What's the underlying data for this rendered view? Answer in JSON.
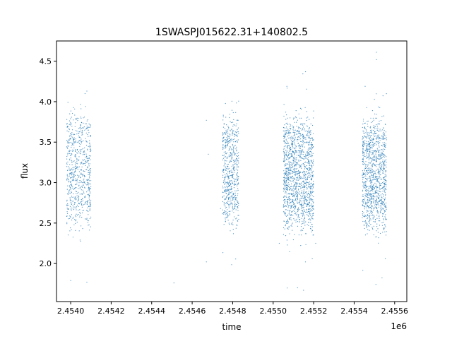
{
  "chart_data": {
    "type": "scatter",
    "title": "1SWASPJ015622.31+140802.5",
    "xlabel": "time",
    "ylabel": "flux",
    "x_offset_label": "1e6",
    "xlim": [
      2.45393,
      2.45566
    ],
    "ylim": [
      1.53,
      4.75
    ],
    "x_ticks": [
      2.454,
      2.4542,
      2.4544,
      2.4546,
      2.4548,
      2.455,
      2.4552,
      2.4554,
      2.4556
    ],
    "x_tick_labels": [
      "2.4540",
      "2.4542",
      "2.4544",
      "2.4546",
      "2.4548",
      "2.4550",
      "2.4552",
      "2.4554",
      "2.4556"
    ],
    "y_ticks": [
      2.0,
      2.5,
      3.0,
      3.5,
      4.0,
      4.5
    ],
    "y_tick_labels": [
      "2.0",
      "2.5",
      "3.0",
      "3.5",
      "4.0",
      "4.5"
    ],
    "grid": false,
    "legend": "none",
    "point_color": "#1f77b4",
    "clusters": [
      {
        "x_start": 2.45398,
        "x_end": 2.4541,
        "center": 3.15,
        "spread": 0.33,
        "count": 700
      },
      {
        "x_start": 2.45475,
        "x_end": 2.45483,
        "center": 3.15,
        "spread": 0.3,
        "count": 600
      },
      {
        "x_start": 2.45505,
        "x_end": 2.4552,
        "center": 3.1,
        "spread": 0.35,
        "count": 1400
      },
      {
        "x_start": 2.45544,
        "x_end": 2.45556,
        "center": 3.1,
        "spread": 0.35,
        "count": 1100
      }
    ],
    "outliers": [
      {
        "x": 2.45451,
        "y": 1.76
      },
      {
        "x": 2.45467,
        "y": 3.77
      },
      {
        "x": 2.45467,
        "y": 2.02
      },
      {
        "x": 2.45468,
        "y": 3.35
      },
      {
        "x": 2.45474,
        "y": 2.68
      },
      {
        "x": 2.45503,
        "y": 2.25
      },
      {
        "x": 2.45516,
        "y": 4.37
      },
      {
        "x": 2.45521,
        "y": 2.25
      },
      {
        "x": 2.45551,
        "y": 4.61
      },
      {
        "x": 2.45551,
        "y": 4.52
      },
      {
        "x": 2.4555,
        "y": 4.03
      },
      {
        "x": 2.45408,
        "y": 4.13
      },
      {
        "x": 2.45408,
        "y": 1.77
      },
      {
        "x": 2.454,
        "y": 1.79
      },
      {
        "x": 2.45512,
        "y": 1.7
      },
      {
        "x": 2.45515,
        "y": 1.67
      }
    ]
  }
}
